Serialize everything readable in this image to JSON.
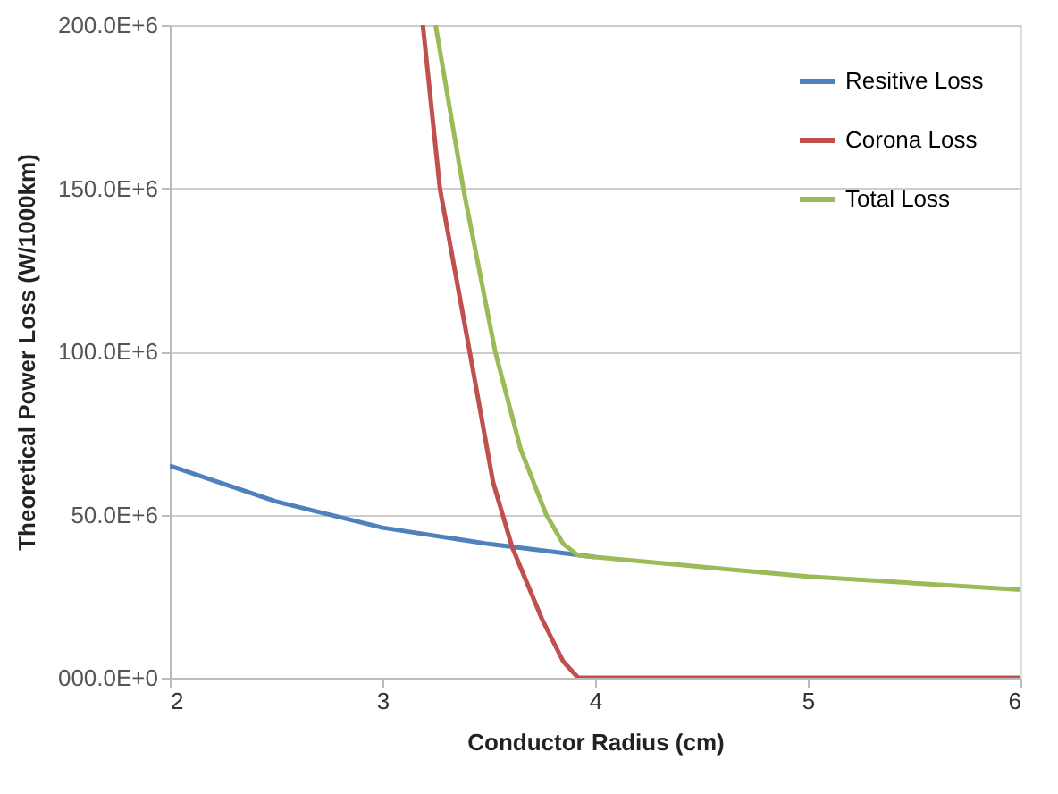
{
  "chart_data": {
    "type": "line",
    "xlabel": "Conductor  Radius (cm)",
    "ylabel": "Theoretical  Power Loss (W/1000km)",
    "xlim": [
      2,
      6
    ],
    "xticks": [
      2,
      3,
      4,
      5,
      6
    ],
    "ylim": [
      0,
      200000000
    ],
    "yticks": [
      {
        "value": 0,
        "label": "000.0E+0"
      },
      {
        "value": 50000000,
        "label": "50.0E+6"
      },
      {
        "value": 100000000,
        "label": "100.0E+6"
      },
      {
        "value": 150000000,
        "label": "150.0E+6"
      },
      {
        "value": 200000000,
        "label": "200.0E+6"
      }
    ],
    "grid": "y",
    "legend": "top right",
    "marker": "none",
    "line_style": "solid",
    "series": [
      {
        "name": "Resitive Loss",
        "color": "#4f81bd",
        "x": [
          2,
          2.5,
          3,
          3.5,
          4
        ],
        "values": [
          65000000,
          54000000,
          46000000,
          41000000,
          37000000
        ]
      },
      {
        "name": "Corona Loss",
        "color": "#c0504d",
        "x": [
          3.19,
          3.27,
          3.41,
          3.52,
          3.61,
          3.75,
          3.85,
          3.92,
          6
        ],
        "values": [
          200000000,
          150000000,
          100000000,
          60000000,
          40000000,
          18000000,
          5000000,
          0,
          0
        ]
      },
      {
        "name": "Total Loss",
        "color": "#9bbb59",
        "x": [
          3.25,
          3.38,
          3.53,
          3.65,
          3.77,
          3.85,
          3.92,
          4,
          4.5,
          5,
          5.5,
          6
        ],
        "values": [
          200000000,
          150000000,
          100000000,
          70000000,
          50000000,
          41000000,
          37500000,
          37000000,
          34000000,
          31000000,
          29000000,
          27000000
        ]
      }
    ]
  }
}
